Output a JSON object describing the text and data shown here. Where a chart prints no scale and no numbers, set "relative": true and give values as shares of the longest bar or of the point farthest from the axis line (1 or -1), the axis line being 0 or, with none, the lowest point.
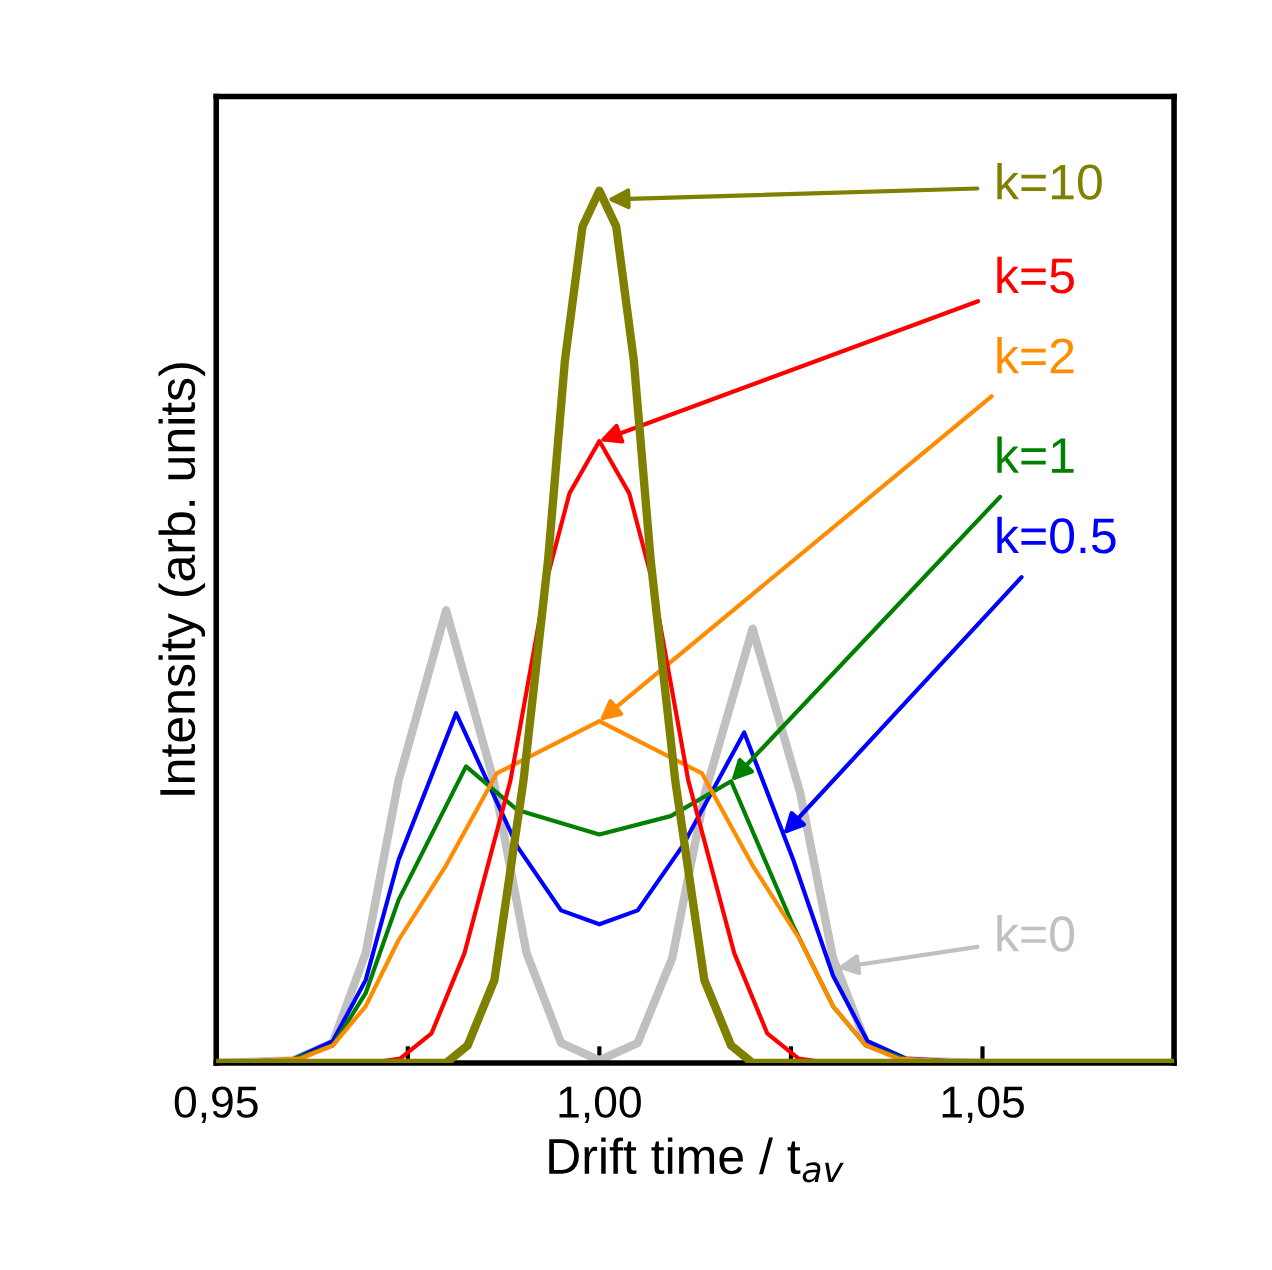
{
  "chart_data": {
    "type": "line",
    "relative": true,
    "xlabel": "Drift time / t$_{av}$",
    "ylabel": "Intensity (arb. units)",
    "xlim": [
      0.95,
      1.075
    ],
    "xticks": [
      {
        "value": 0.95,
        "label": "0,95"
      },
      {
        "value": 0.975,
        "label": null
      },
      {
        "value": 1.0,
        "label": "1,00"
      },
      {
        "value": 1.025,
        "label": null
      },
      {
        "value": 1.05,
        "label": "1,05"
      }
    ],
    "grid": false,
    "legend": false,
    "tick_labels": "x",
    "series": [
      {
        "color": "#c0c0c0",
        "x": [
          0.95,
          0.96,
          0.9652,
          0.9695,
          0.9738,
          0.98,
          0.9862,
          0.9905,
          0.995,
          1.0,
          1.005,
          1.0095,
          1.0138,
          1.02,
          1.0262,
          1.0305,
          1.0348,
          1.04,
          1.05,
          1.075
        ],
        "values": [
          0,
          0.003,
          0.023,
          0.126,
          0.324,
          0.519,
          0.324,
          0.126,
          0.023,
          0.003,
          0.023,
          0.12,
          0.31,
          0.498,
          0.31,
          0.12,
          0.023,
          0.003,
          0,
          0
        ]
      },
      {
        "color": "#0000ff",
        "x": [
          0.95,
          0.96,
          0.9652,
          0.9695,
          0.9738,
          0.9813,
          0.9893,
          0.995,
          1.0,
          1.005,
          1.0108,
          1.0189,
          1.0253,
          1.0305,
          1.035,
          1.04,
          1.05,
          1.075
        ],
        "values": [
          0,
          0.004,
          0.025,
          0.095,
          0.233,
          0.401,
          0.248,
          0.175,
          0.159,
          0.175,
          0.248,
          0.379,
          0.233,
          0.1,
          0.025,
          0.005,
          0,
          0
        ]
      },
      {
        "color": "#008000",
        "x": [
          0.95,
          0.96,
          0.9652,
          0.9695,
          0.9738,
          0.9826,
          0.9893,
          1.0,
          1.0093,
          1.0172,
          1.0253,
          1.0305,
          1.0348,
          1.04,
          1.05,
          1.075
        ],
        "values": [
          0,
          0.004,
          0.02,
          0.08,
          0.187,
          0.34,
          0.29,
          0.262,
          0.283,
          0.323,
          0.157,
          0.065,
          0.02,
          0.004,
          0,
          0
        ]
      },
      {
        "color": "#ff8c00",
        "x": [
          0.95,
          0.9609,
          0.9652,
          0.9695,
          0.9738,
          0.9799,
          0.9866,
          1.0,
          1.0134,
          1.0201,
          1.0262,
          1.0305,
          1.0348,
          1.0391,
          1.05,
          1.075
        ],
        "values": [
          0,
          0.005,
          0.02,
          0.065,
          0.141,
          0.225,
          0.332,
          0.392,
          0.332,
          0.225,
          0.141,
          0.065,
          0.02,
          0.005,
          0,
          0
        ]
      },
      {
        "color": "#ff0000",
        "x": [
          0.95,
          0.97,
          0.974,
          0.9781,
          0.9824,
          0.9884,
          0.9931,
          0.9961,
          1.0,
          1.0039,
          1.0069,
          1.0116,
          1.0176,
          1.0219,
          1.026,
          1.03
        ],
        "values": [
          0,
          0,
          0.005,
          0.034,
          0.126,
          0.324,
          0.553,
          0.653,
          0.713,
          0.653,
          0.553,
          0.324,
          0.126,
          0.034,
          0.005,
          0
        ]
      },
      {
        "color": "#808000",
        "x": [
          0.95,
          0.98,
          0.9828,
          0.9863,
          0.9901,
          0.9933,
          0.9955,
          0.9978,
          1.0,
          1.0022,
          1.0045,
          1.0067,
          1.0099,
          1.0137,
          1.0172,
          1.02,
          1.05,
          1.075
        ],
        "values": [
          0,
          0,
          0.02,
          0.095,
          0.324,
          0.576,
          0.805,
          0.959,
          1.0,
          0.959,
          0.805,
          0.576,
          0.324,
          0.095,
          0.02,
          0,
          0,
          0
        ]
      }
    ],
    "annotations": [
      {
        "text": "k=0",
        "x": 1.031,
        "y": 0.109
      },
      {
        "text": "k=0.5",
        "x": 1.024,
        "y": 0.262
      },
      {
        "text": "k=1",
        "x": 1.0172,
        "y": 0.323
      },
      {
        "text": "k=2",
        "x": 1.0,
        "y": 0.392
      },
      {
        "text": "k=5",
        "x": 1.0,
        "y": 0.713
      },
      {
        "text": "k=10",
        "x": 1.001,
        "y": 0.99
      }
    ]
  }
}
